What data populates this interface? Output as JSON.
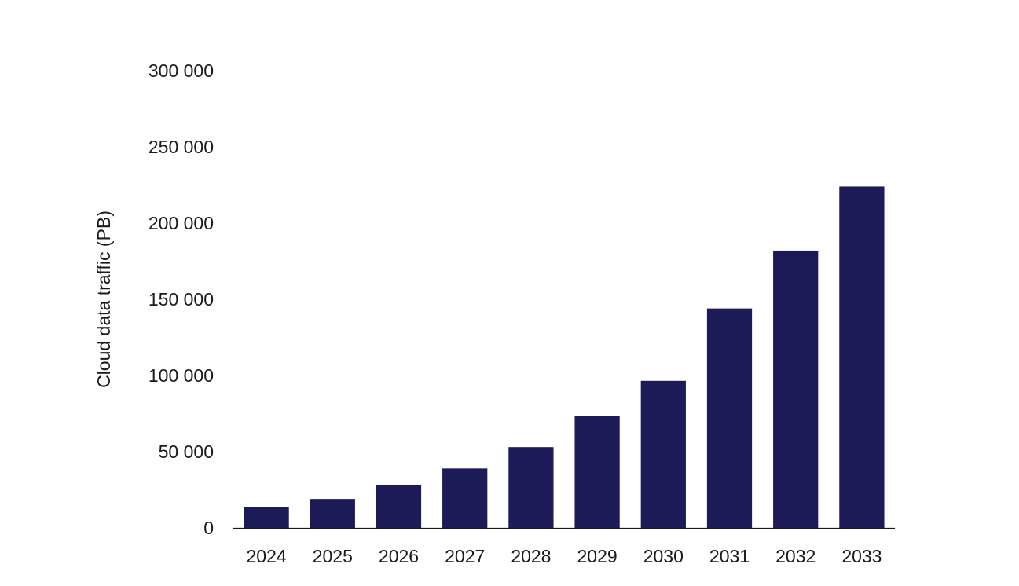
{
  "chart_data": {
    "type": "bar",
    "title": "",
    "xlabel": "",
    "ylabel": "Cloud data traffic (PB)",
    "categories": [
      "2024",
      "2025",
      "2026",
      "2027",
      "2028",
      "2029",
      "2030",
      "2031",
      "2032",
      "2033"
    ],
    "values": [
      13500,
      19000,
      28000,
      39000,
      53000,
      73500,
      96500,
      144000,
      182000,
      224000
    ],
    "ylim": [
      0,
      300000
    ],
    "yticks": [
      0,
      50000,
      100000,
      150000,
      200000,
      250000,
      300000
    ],
    "ytick_labels": [
      "0",
      "50 000",
      "100 000",
      "150 000",
      "200 000",
      "250 000",
      "300 000"
    ],
    "bar_color": "#1c1a57",
    "grid": false,
    "legend": "none"
  }
}
